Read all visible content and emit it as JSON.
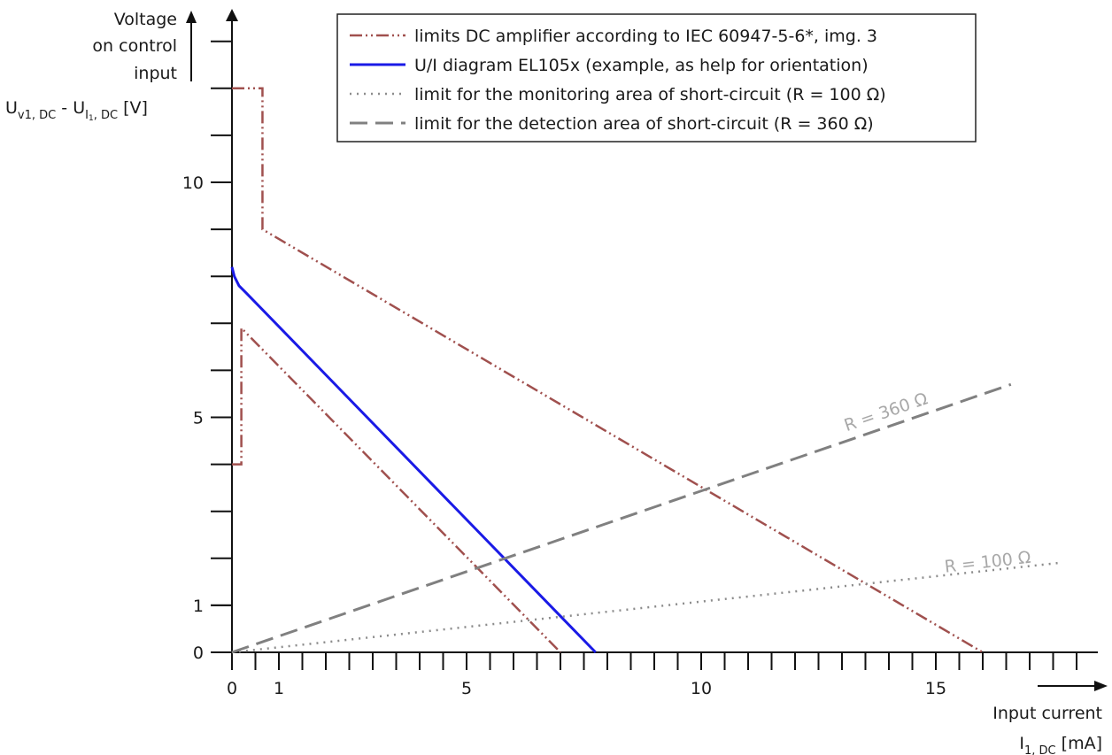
{
  "chart_data": {
    "type": "line",
    "ylabel_lines": [
      "Voltage",
      "on control",
      "input"
    ],
    "ylabel_formula": {
      "u1": "U",
      "u1_sub": "v1, DC",
      "dash": " - ",
      "u2": "U",
      "u2_sub_a": "I",
      "u2_sub_b": "1",
      "u2_sub_c": ", DC",
      "unit": " [V]"
    },
    "xlabel_line1": "Input current",
    "xlabel_line2": {
      "main": "I",
      "sub": "1, DC",
      "unit": " [mA]"
    },
    "x_tick_labels": [
      {
        "value": 0,
        "label": "0"
      },
      {
        "value": 1,
        "label": "1"
      },
      {
        "value": 5,
        "label": "5"
      },
      {
        "value": 10,
        "label": "10"
      },
      {
        "value": 15,
        "label": "15"
      }
    ],
    "y_tick_labels": [
      {
        "value": 0,
        "label": "0"
      },
      {
        "value": 1,
        "label": "1"
      },
      {
        "value": 5,
        "label": "5"
      },
      {
        "value": 10,
        "label": "10"
      }
    ],
    "x_minor_ticks": [
      0.5,
      1,
      1.5,
      2,
      2.5,
      3,
      3.5,
      4,
      4.5,
      5,
      5.5,
      6,
      6.5,
      7,
      7.5,
      8,
      8.5,
      9,
      9.5,
      10,
      10.5,
      11,
      11.5,
      12,
      12.5,
      13,
      13.5,
      14,
      14.5,
      15,
      15.5,
      16,
      16.5,
      17,
      17.5,
      18
    ],
    "y_minor_ticks": [
      1,
      2,
      3,
      4,
      5,
      6,
      7,
      8,
      9,
      10,
      11,
      12,
      13
    ],
    "xlim": [
      0,
      18.6
    ],
    "ylim": [
      0,
      13.5
    ],
    "series": [
      {
        "name": "limits DC amplifier according to IEC 60947-5-6*, img. 3",
        "color": "#a0504e",
        "style": "dash-dot-dot",
        "segments": [
          [
            [
              0,
              4
            ],
            [
              0.2,
              4
            ],
            [
              0.2,
              6.9
            ],
            [
              7.0,
              0
            ]
          ],
          [
            [
              0,
              12.0
            ],
            [
              0.65,
              12.0
            ],
            [
              0.65,
              9.0
            ],
            [
              16.0,
              0
            ]
          ]
        ]
      },
      {
        "name": "U/I diagram EL105x (example, as help for orientation)",
        "color": "#1a1ae6",
        "style": "solid",
        "segments": [
          [
            [
              0,
              8.2
            ],
            [
              0.05,
              8.0
            ],
            [
              0.15,
              7.8
            ],
            [
              0.3,
              7.65
            ],
            [
              7.75,
              0
            ]
          ]
        ]
      },
      {
        "name": "limit for the monitoring area of short-circuit (R = 100 Ω)",
        "color": "#8c8c8c",
        "style": "dotted",
        "segments": [
          [
            [
              0,
              0
            ],
            [
              17.6,
              1.9
            ]
          ]
        ]
      },
      {
        "name": "limit for the detection area of short-circuit (R = 360 Ω)",
        "color": "#808080",
        "style": "dashed",
        "segments": [
          [
            [
              0,
              0
            ],
            [
              16.6,
              5.7
            ]
          ]
        ]
      }
    ],
    "annotations": [
      {
        "text": "R = 360 Ω",
        "x": 13.1,
        "y": 4.7,
        "angle": -19
      },
      {
        "text": "R = 100 Ω",
        "x": 15.2,
        "y": 1.7,
        "angle": -6.5
      }
    ],
    "legend_position": "top-center",
    "grid": false
  }
}
